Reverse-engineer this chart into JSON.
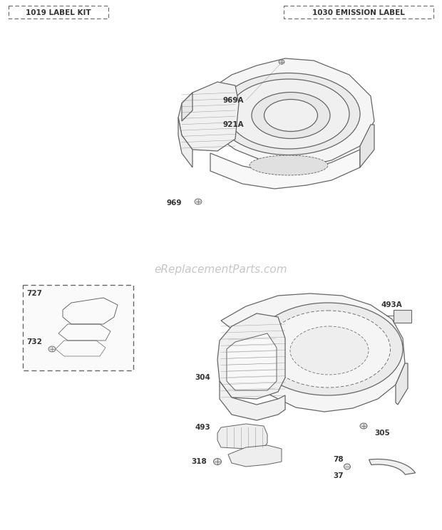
{
  "bg_color": "#ffffff",
  "header_left": "1019 LABEL KIT",
  "header_right": "1030 EMISSION LABEL",
  "watermark": "eReplacementParts.com",
  "line_color": "#666666",
  "text_color": "#333333",
  "header_font_size": 7,
  "part_font_size": 7,
  "watermark_font_size": 11
}
